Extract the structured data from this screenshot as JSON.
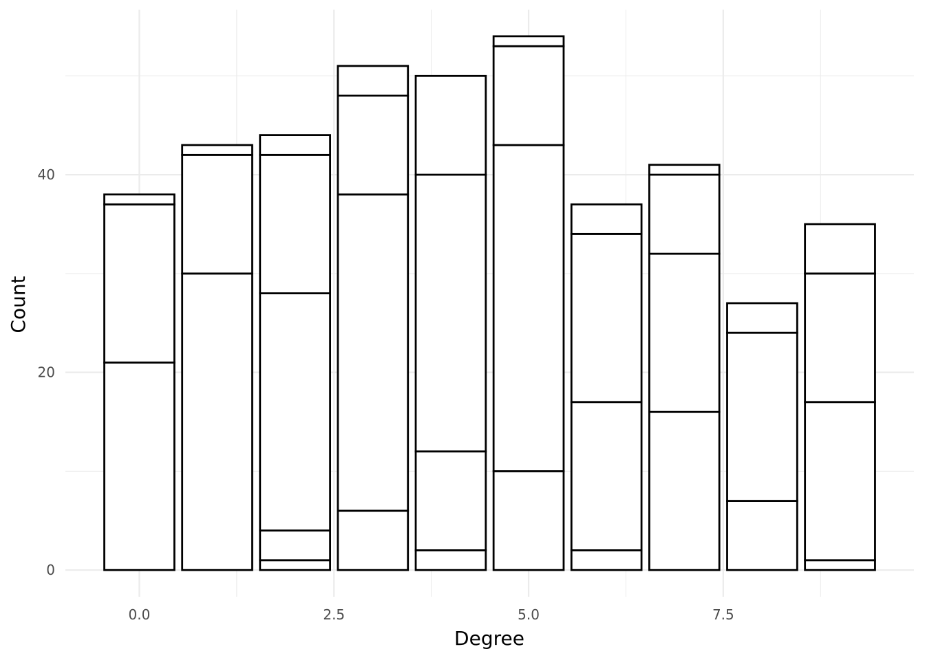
{
  "chart_data": {
    "type": "bar",
    "stacked": true,
    "xlabel": "Degree",
    "ylabel": "Count",
    "x": [
      0,
      1,
      2,
      3,
      4,
      5,
      6,
      7,
      8,
      9
    ],
    "bar_width": 0.9,
    "stacks": [
      [
        21,
        16,
        1
      ],
      [
        30,
        12,
        1
      ],
      [
        1,
        3,
        24,
        14,
        2
      ],
      [
        6,
        32,
        10,
        3
      ],
      [
        2,
        10,
        28,
        10
      ],
      [
        10,
        33,
        10,
        1
      ],
      [
        2,
        15,
        17,
        3
      ],
      [
        16,
        16,
        8,
        1
      ],
      [
        7,
        17,
        3
      ],
      [
        1,
        16,
        13,
        5
      ]
    ],
    "totals": [
      38,
      43,
      44,
      51,
      50,
      54,
      37,
      41,
      27,
      35
    ],
    "xlim": [
      -0.95,
      9.95
    ],
    "ylim": [
      -2.7,
      56.7
    ],
    "x_ticks": [
      0,
      2.5,
      5,
      7.5
    ],
    "x_tick_labels": [
      "0.0",
      "2.5",
      "5.0",
      "7.5"
    ],
    "y_ticks": [
      0,
      20,
      40
    ],
    "y_tick_labels": [
      "0",
      "20",
      "40"
    ],
    "grid": true,
    "fill_color": "#ffffff",
    "outline_color": "#000000",
    "grid_color": "#ebebeb",
    "tick_label_color": "#4d4d4d"
  }
}
